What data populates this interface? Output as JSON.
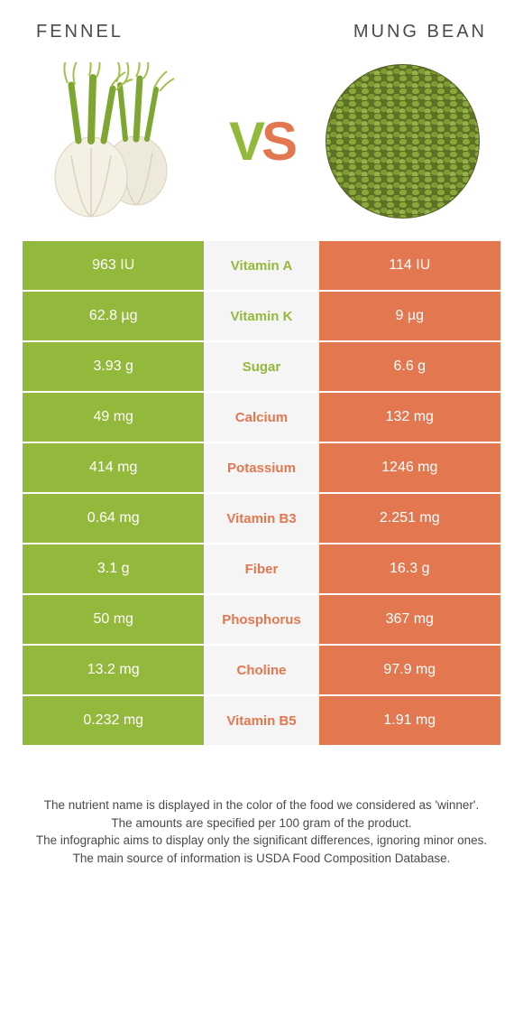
{
  "header": {
    "left_title": "FENNEL",
    "right_title": "MUNG BEAN",
    "vs_v": "V",
    "vs_s": "S"
  },
  "colors": {
    "green": "#93b93c",
    "orange": "#e37750",
    "mid_bg": "#f5f5f5",
    "text_dark": "#4a4a4a",
    "fennel_bulb": "#f2efe0",
    "fennel_stalk": "#7ea632",
    "fennel_leaf": "#a1c24a",
    "mung_outer": "#6a7d2e",
    "mung_inner": "#8aa83a"
  },
  "rows": [
    {
      "left": "963 IU",
      "mid": "Vitamin A",
      "right": "114 IU",
      "winner": "green"
    },
    {
      "left": "62.8 µg",
      "mid": "Vitamin K",
      "right": "9 µg",
      "winner": "green"
    },
    {
      "left": "3.93 g",
      "mid": "Sugar",
      "right": "6.6 g",
      "winner": "green"
    },
    {
      "left": "49 mg",
      "mid": "Calcium",
      "right": "132 mg",
      "winner": "orange"
    },
    {
      "left": "414 mg",
      "mid": "Potassium",
      "right": "1246 mg",
      "winner": "orange"
    },
    {
      "left": "0.64 mg",
      "mid": "Vitamin B3",
      "right": "2.251 mg",
      "winner": "orange"
    },
    {
      "left": "3.1 g",
      "mid": "Fiber",
      "right": "16.3 g",
      "winner": "orange"
    },
    {
      "left": "50 mg",
      "mid": "Phosphorus",
      "right": "367 mg",
      "winner": "orange"
    },
    {
      "left": "13.2 mg",
      "mid": "Choline",
      "right": "97.9 mg",
      "winner": "orange"
    },
    {
      "left": "0.232 mg",
      "mid": "Vitamin B5",
      "right": "1.91 mg",
      "winner": "orange"
    }
  ],
  "footnotes": [
    "The nutrient name is displayed in the color of the food we considered as 'winner'.",
    "The amounts are specified per 100 gram of the product.",
    "The infographic aims to display only the significant differences, ignoring minor ones.",
    "The main source of information is USDA Food Composition Database."
  ]
}
